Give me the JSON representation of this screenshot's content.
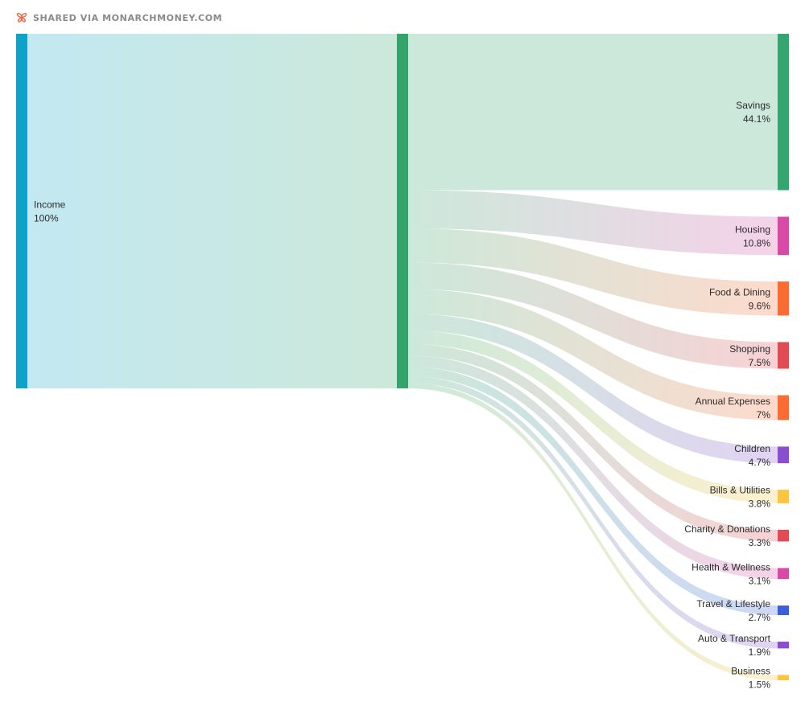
{
  "header": {
    "text": "SHARED VIA MONARCHMONEY.COM",
    "icon": "monarch-butterfly-icon",
    "icon_color": "#e8694a"
  },
  "chart_data": {
    "type": "sankey",
    "unit": "%",
    "source": {
      "name": "Income",
      "value": "100%",
      "color": "#0ea2c9"
    },
    "middle": {
      "color": "#34a46b"
    },
    "outflows": [
      {
        "name": "Savings",
        "value": "44.1%",
        "percent": 44.1,
        "color": "#35a56f"
      },
      {
        "name": "Housing",
        "value": "10.8%",
        "percent": 10.8,
        "color": "#d94aa6"
      },
      {
        "name": "Food & Dining",
        "value": "9.6%",
        "percent": 9.6,
        "color": "#fb6c35"
      },
      {
        "name": "Shopping",
        "value": "7.5%",
        "percent": 7.5,
        "color": "#e24a54"
      },
      {
        "name": "Annual Expenses",
        "value": "7%",
        "percent": 7.0,
        "color": "#fb6c35"
      },
      {
        "name": "Children",
        "value": "4.7%",
        "percent": 4.7,
        "color": "#8a4fd0"
      },
      {
        "name": "Bills & Utilities",
        "value": "3.8%",
        "percent": 3.8,
        "color": "#fdc43f"
      },
      {
        "name": "Charity & Donations",
        "value": "3.3%",
        "percent": 3.3,
        "color": "#e24a54"
      },
      {
        "name": "Health & Wellness",
        "value": "3.1%",
        "percent": 3.1,
        "color": "#d94aa6"
      },
      {
        "name": "Travel & Lifestyle",
        "value": "2.7%",
        "percent": 2.7,
        "color": "#3a5fd8"
      },
      {
        "name": "Auto & Transport",
        "value": "1.9%",
        "percent": 1.9,
        "color": "#8a4fd0"
      },
      {
        "name": "Business",
        "value": "1.5%",
        "percent": 1.5,
        "color": "#fdc43f"
      }
    ]
  }
}
